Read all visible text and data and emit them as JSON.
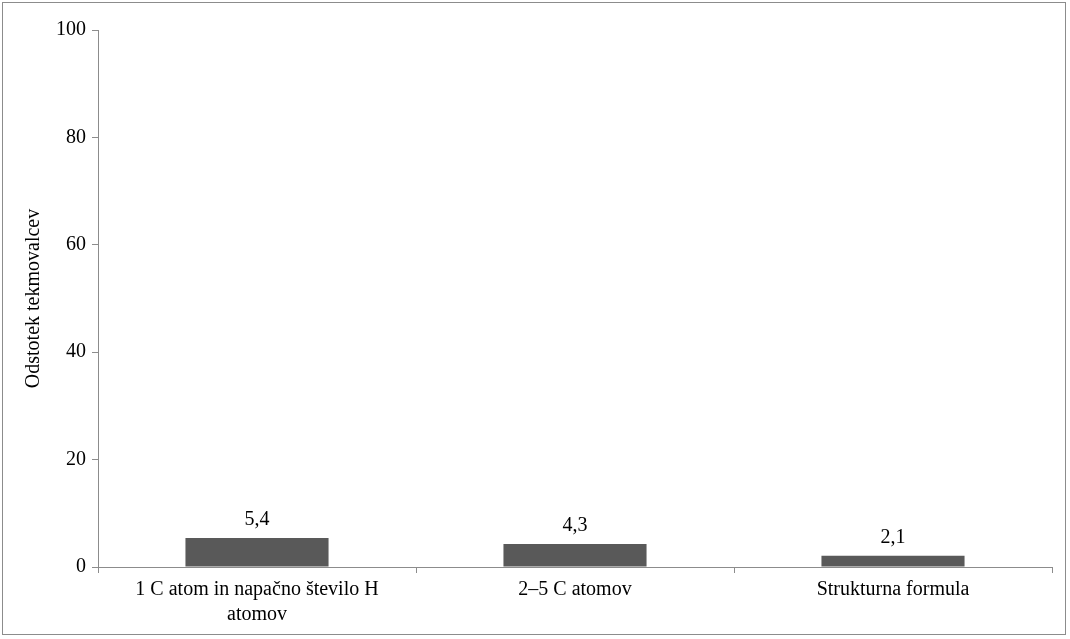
{
  "chart_data": {
    "type": "bar",
    "ylabel": "Odstotek tekmovalcev",
    "categories": [
      "1 C atom in napačno število H atomov",
      "2–5 C atomov",
      "Strukturna formula"
    ],
    "values": [
      5.4,
      4.3,
      2.1
    ],
    "color": "#595959",
    "value_labels": [
      "5,4",
      "4,3",
      "2,1"
    ],
    "ylim": [
      0,
      100
    ],
    "yticks": [
      0,
      20,
      40,
      60,
      80,
      100
    ],
    "grid": false,
    "legend": false
  }
}
